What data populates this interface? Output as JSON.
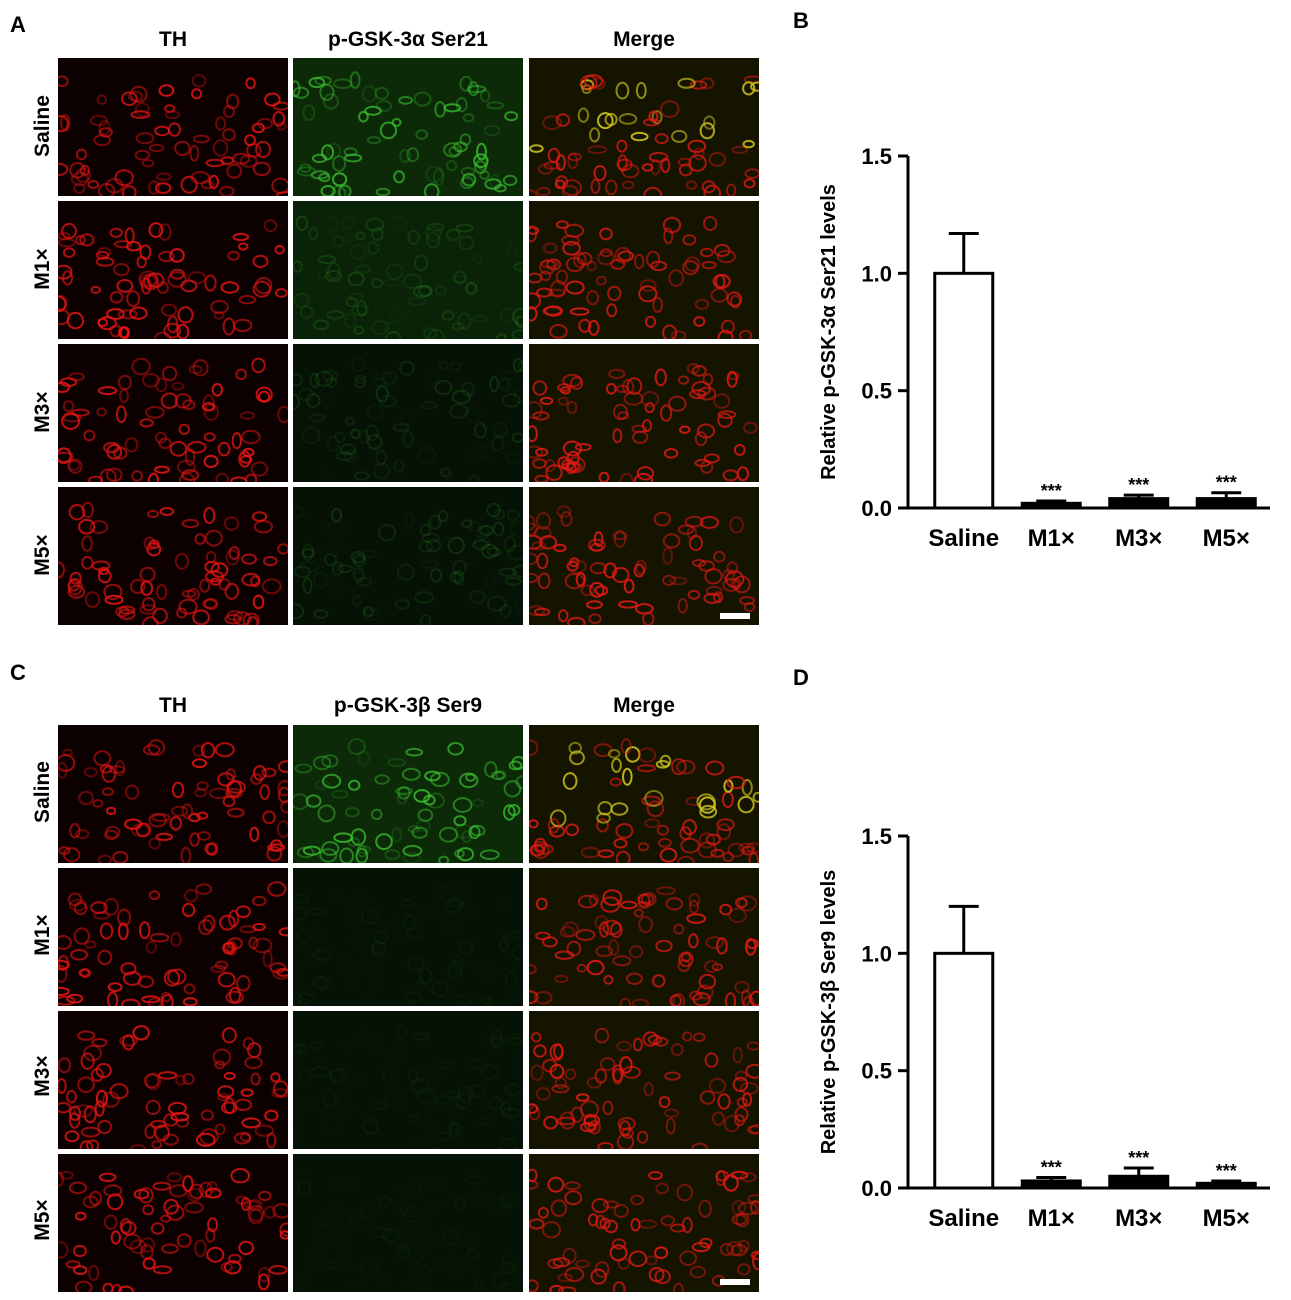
{
  "figure": {
    "panel_a": {
      "letter": "A",
      "columns": [
        "TH",
        "p-GSK-3α Ser21",
        "Merge"
      ],
      "rows": [
        "Saline",
        "M1×",
        "M3×",
        "M5×"
      ]
    },
    "panel_c": {
      "letter": "C",
      "columns": [
        "TH",
        "p-GSK-3β Ser9",
        "Merge"
      ],
      "rows": [
        "Saline",
        "M1×",
        "M3×",
        "M5×"
      ]
    },
    "panel_b_letter": "B",
    "panel_d_letter": "D",
    "colors": {
      "red_channel": "#e01010",
      "green_channel": "#3cc030",
      "merge_yellow": "#c8c020"
    }
  },
  "chart_data": [
    {
      "type": "bar",
      "categories": [
        "Saline",
        "M1×",
        "M3×",
        "M5×"
      ],
      "values": [
        1.0,
        0.02,
        0.04,
        0.04
      ],
      "errors": [
        0.17,
        0.01,
        0.015,
        0.025
      ],
      "annotations": [
        "",
        "***",
        "***",
        "***"
      ],
      "title": "",
      "xlabel": "",
      "ylabel": "Relative p-GSK-3α Ser21 levels",
      "ylim": [
        0,
        1.5
      ],
      "yticks": [
        "0.0",
        "0.5",
        "1.0",
        "1.5"
      ],
      "bar_fill": [
        "#ffffff",
        "#000000",
        "#000000",
        "#000000"
      ]
    },
    {
      "type": "bar",
      "categories": [
        "Saline",
        "M1×",
        "M3×",
        "M5×"
      ],
      "values": [
        1.0,
        0.03,
        0.05,
        0.02
      ],
      "errors": [
        0.2,
        0.015,
        0.035,
        0.01
      ],
      "annotations": [
        "",
        "***",
        "***",
        "***"
      ],
      "title": "",
      "xlabel": "",
      "ylabel": "Relative p-GSK-3β Ser9 levels",
      "ylim": [
        0,
        1.5
      ],
      "yticks": [
        "0.0",
        "0.5",
        "1.0",
        "1.5"
      ],
      "bar_fill": [
        "#ffffff",
        "#000000",
        "#000000",
        "#000000"
      ]
    }
  ]
}
